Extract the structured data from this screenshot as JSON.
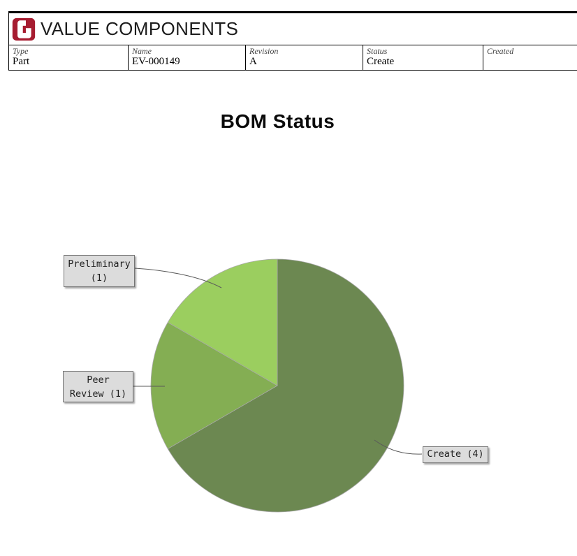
{
  "header": {
    "brand": "VALUE COMPONENTS",
    "brand_color": "#a61c30"
  },
  "info_table": {
    "columns": [
      {
        "label": "Type",
        "value": "Part"
      },
      {
        "label": "Name",
        "value": "EV-000149"
      },
      {
        "label": "Revision",
        "value": "A"
      },
      {
        "label": "Status",
        "value": "Create"
      },
      {
        "label": "Created",
        "value": ""
      }
    ]
  },
  "chart_data": {
    "type": "pie",
    "title": "BOM Status",
    "categories": [
      "Create",
      "Peer Review",
      "Preliminary"
    ],
    "values": [
      4,
      1,
      1
    ],
    "total": 6,
    "colors": [
      "#6c8851",
      "#84ae53",
      "#9bce5f"
    ],
    "start_angle_deg": 0,
    "direction": "clockwise",
    "legend": "none",
    "labels": [
      {
        "full": "Create (4)",
        "lines": [
          "Create (4)"
        ]
      },
      {
        "full": "Peer Review (1)",
        "lines": [
          "Peer",
          "Review (1)"
        ]
      },
      {
        "full": "Preliminary (1)",
        "lines": [
          "Preliminary",
          "(1)"
        ]
      }
    ]
  }
}
